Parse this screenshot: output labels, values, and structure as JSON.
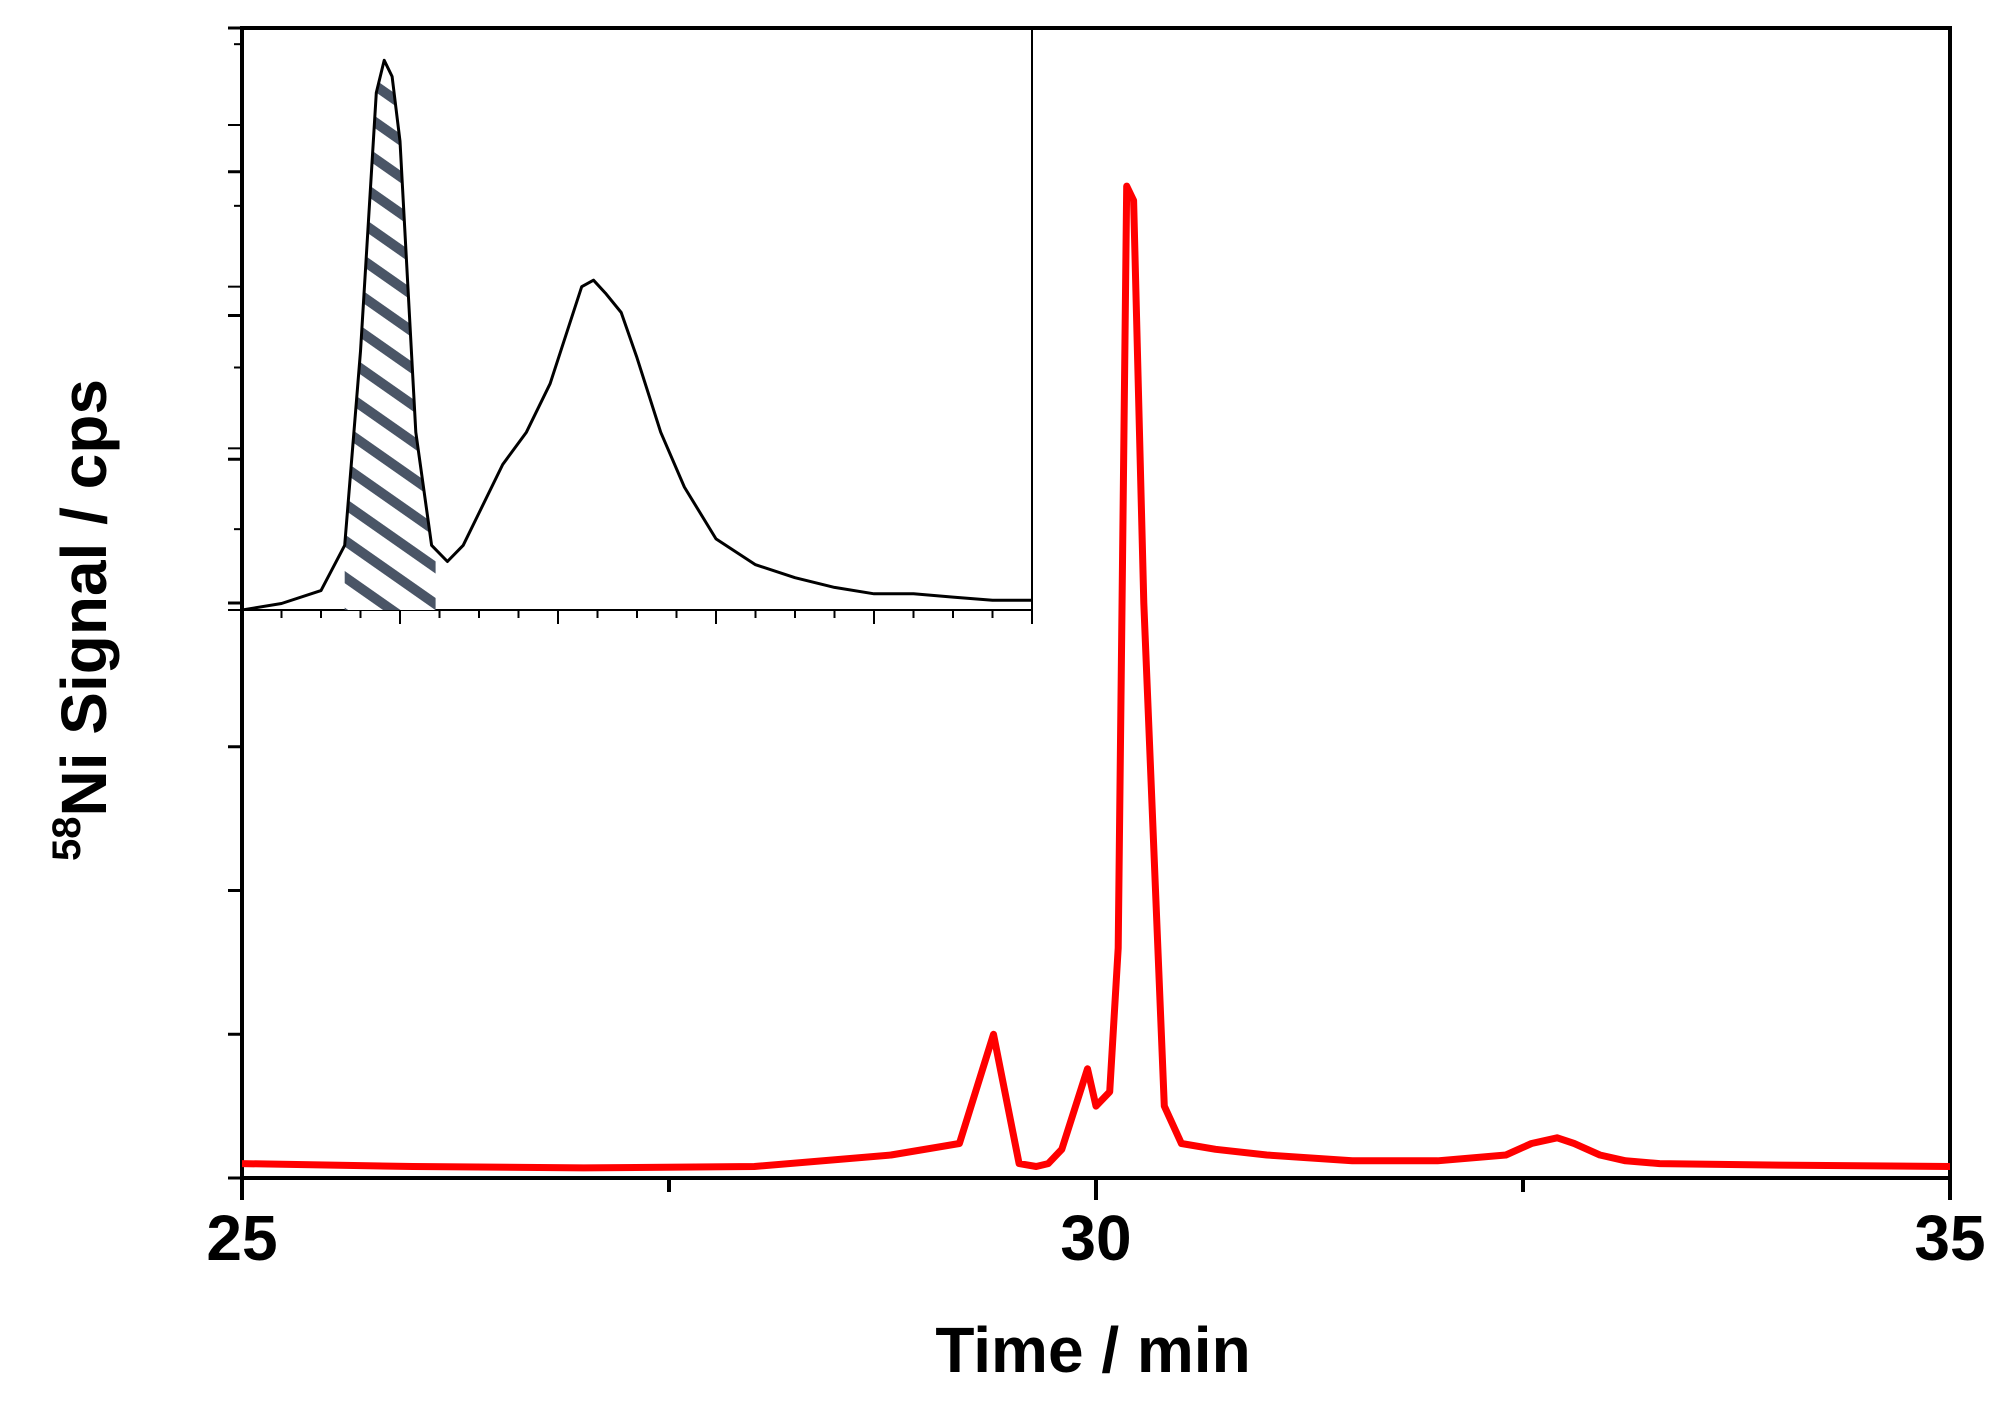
{
  "chart_data": [
    {
      "type": "line",
      "title": "",
      "xlabel": "Time / min",
      "ylabel": {
        "isotope": "58",
        "text": "Ni Signal / cps"
      },
      "xlim": [
        25,
        35
      ],
      "ylim": [
        0,
        4
      ],
      "x_ticks": [
        25,
        30,
        35
      ],
      "x_tick_labels": [
        "25",
        "30",
        "35"
      ],
      "x_minor_step": 2.5,
      "y_ticks": [
        0,
        0.5,
        1,
        1.5,
        2,
        2.5,
        3,
        3.5,
        4
      ],
      "y_tick_labels_shown": false,
      "grid": false,
      "series": [
        {
          "color": "#ff0000",
          "x": [
            25.0,
            26.0,
            27.0,
            28.0,
            28.8,
            29.2,
            29.4,
            29.55,
            29.65,
            29.72,
            29.8,
            29.95,
            30.0,
            30.08,
            30.13,
            30.18,
            30.22,
            30.28,
            30.4,
            30.5,
            30.7,
            31.0,
            31.5,
            32.0,
            32.4,
            32.55,
            32.7,
            32.8,
            32.95,
            33.1,
            33.3,
            34.0,
            35.0
          ],
          "y": [
            0.05,
            0.04,
            0.035,
            0.04,
            0.08,
            0.12,
            0.5,
            0.05,
            0.04,
            0.05,
            0.1,
            0.38,
            0.25,
            0.3,
            0.8,
            3.45,
            3.4,
            2.0,
            0.25,
            0.12,
            0.1,
            0.08,
            0.06,
            0.06,
            0.08,
            0.12,
            0.14,
            0.12,
            0.08,
            0.06,
            0.05,
            0.045,
            0.04
          ]
        }
      ]
    },
    {
      "type": "line",
      "title": "",
      "xlabel": "",
      "ylabel": "",
      "inset": true,
      "xlim": [
        0,
        10
      ],
      "ylim": [
        0,
        1.8
      ],
      "x_tick_labels_shown": false,
      "y_tick_labels_shown": false,
      "grid": false,
      "shaded_region": {
        "x_from": 1.3,
        "x_to": 2.45,
        "pattern": "hatched",
        "color": "#4a5566"
      },
      "series": [
        {
          "color": "#000000",
          "x": [
            0.0,
            0.5,
            1.0,
            1.3,
            1.5,
            1.7,
            1.8,
            1.9,
            2.0,
            2.1,
            2.2,
            2.4,
            2.6,
            2.8,
            3.0,
            3.3,
            3.6,
            3.9,
            4.1,
            4.3,
            4.45,
            4.6,
            4.8,
            5.0,
            5.3,
            5.6,
            6.0,
            6.5,
            7.0,
            7.5,
            8.0,
            8.5,
            9.0,
            9.5,
            10.0
          ],
          "y": [
            0.0,
            0.02,
            0.06,
            0.2,
            0.8,
            1.6,
            1.7,
            1.65,
            1.45,
            1.0,
            0.55,
            0.2,
            0.15,
            0.2,
            0.3,
            0.45,
            0.55,
            0.7,
            0.85,
            1.0,
            1.02,
            0.98,
            0.92,
            0.78,
            0.55,
            0.38,
            0.22,
            0.14,
            0.1,
            0.07,
            0.05,
            0.05,
            0.04,
            0.03,
            0.03
          ]
        }
      ]
    }
  ]
}
